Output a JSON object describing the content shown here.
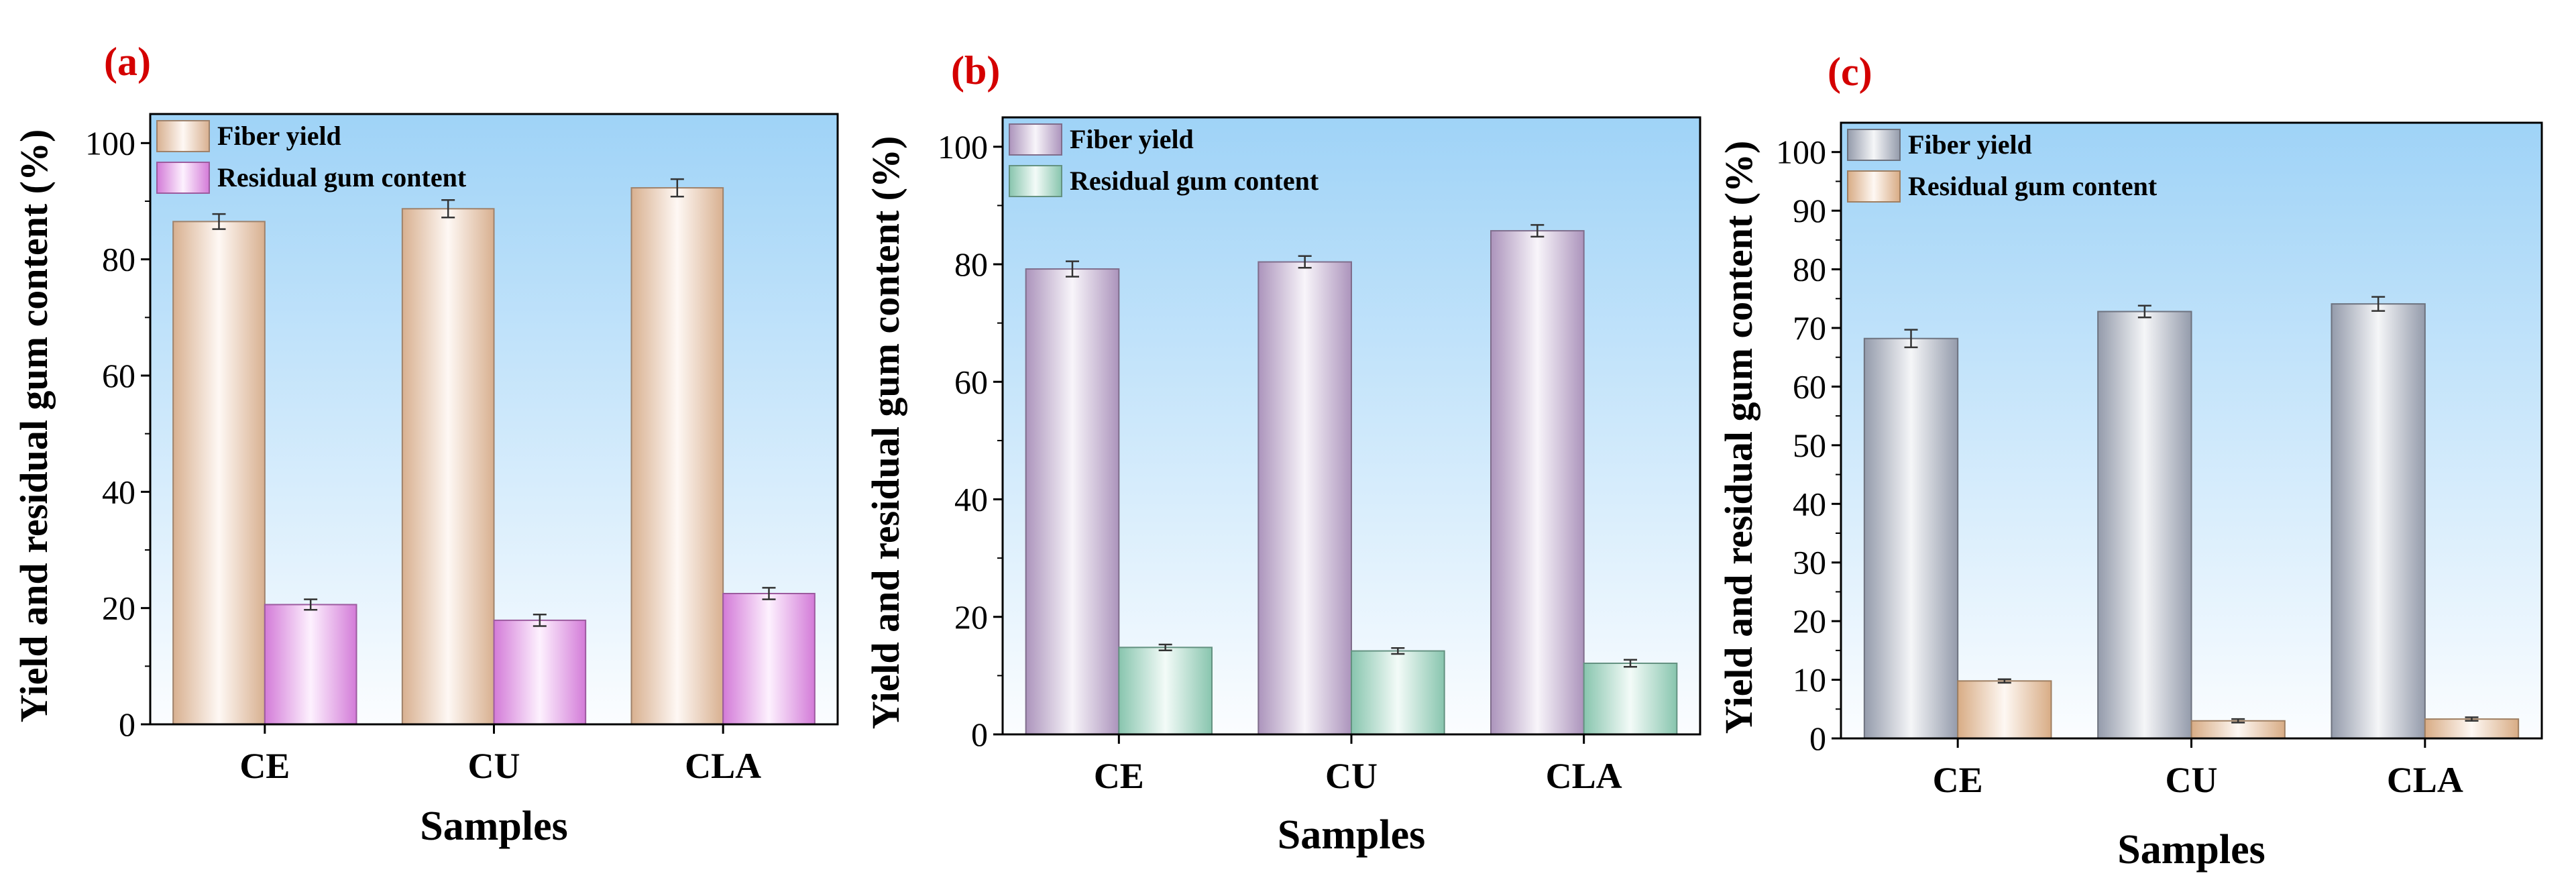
{
  "chart_data": [
    {
      "type": "bar",
      "panel_label": "(a)",
      "categories": [
        "CE",
        "CU",
        "CLA"
      ],
      "series": [
        {
          "name": "Fiber yield",
          "values": [
            86.5,
            88.7,
            92.3
          ],
          "errors": [
            1.3,
            1.5,
            1.5
          ],
          "color": "#f5c8a4"
        },
        {
          "name": "Residual gum content",
          "values": [
            20.6,
            17.9,
            22.5
          ],
          "errors": [
            0.9,
            1.0,
            1.0
          ],
          "color": "#f08cf5"
        }
      ],
      "xlabel": "Samples",
      "ylabel": "Yield and residual gum content (%)",
      "ylim": [
        0,
        105
      ],
      "yticks": [
        "0",
        "20",
        "40",
        "60",
        "80",
        "100"
      ],
      "legend": "top-left"
    },
    {
      "type": "bar",
      "panel_label": "(b)",
      "categories": [
        "CE",
        "CU",
        "CLA"
      ],
      "series": [
        {
          "name": "Fiber yield",
          "values": [
            79.2,
            80.4,
            85.7
          ],
          "errors": [
            1.3,
            1.0,
            1.0
          ],
          "color": "#c4a8d6"
        },
        {
          "name": "Residual gum content",
          "values": [
            14.8,
            14.2,
            12.1
          ],
          "errors": [
            0.5,
            0.5,
            0.6
          ],
          "color": "#9ae0c6"
        }
      ],
      "xlabel": "Samples",
      "ylabel": "Yield and residual gum content (%)",
      "ylim": [
        0,
        105
      ],
      "yticks": [
        "0",
        "20",
        "40",
        "60",
        "80",
        "100"
      ],
      "legend": "top-left"
    },
    {
      "type": "bar",
      "panel_label": "(c)",
      "categories": [
        "CE",
        "CU",
        "CLA"
      ],
      "series": [
        {
          "name": "Fiber yield",
          "values": [
            68.2,
            72.8,
            74.1
          ],
          "errors": [
            1.5,
            1.0,
            1.2
          ],
          "color": "#a8b0c2"
        },
        {
          "name": "Residual gum content",
          "values": [
            9.8,
            3.0,
            3.3
          ],
          "errors": [
            0.3,
            0.3,
            0.3
          ],
          "color": "#f5c497"
        }
      ],
      "xlabel": "Samples",
      "ylabel": "Yield and residual gum content (%)",
      "ylim": [
        0,
        105
      ],
      "yticks": [
        "0",
        "10",
        "20",
        "30",
        "40",
        "50",
        "60",
        "70",
        "80",
        "90",
        "100"
      ],
      "legend": "top-left"
    }
  ]
}
